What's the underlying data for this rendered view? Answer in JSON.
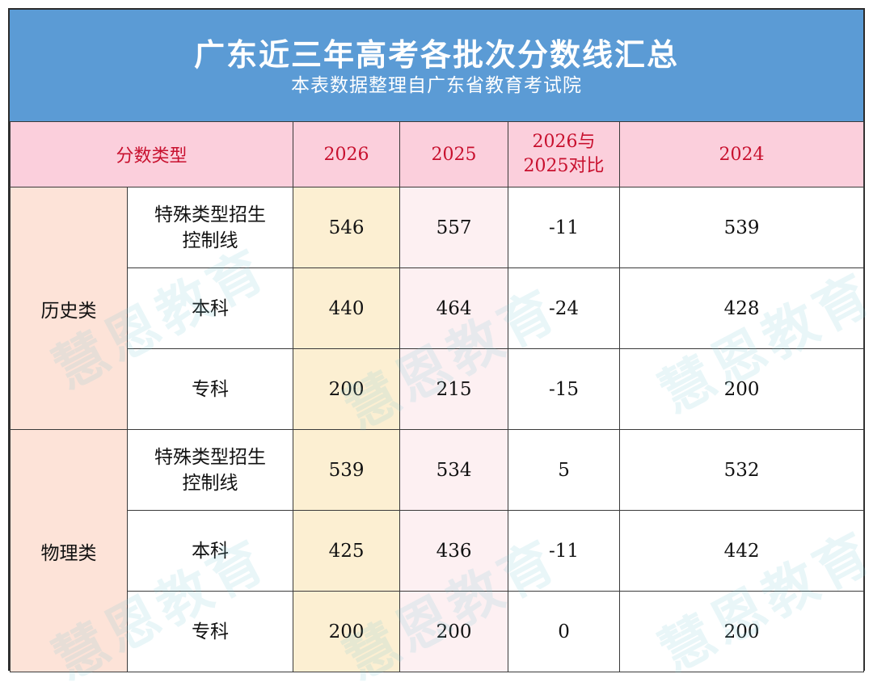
{
  "header": {
    "title": "广东近三年高考各批次分数线汇总",
    "subtitle": "本表数据整理自广东省教育考试院"
  },
  "columns": {
    "type": "分数类型",
    "y2026": "2026",
    "y2025": "2025",
    "compare_line1": "2026与",
    "compare_line2": "2025对比",
    "y2024": "2024"
  },
  "groups": [
    {
      "name": "历史类",
      "rows": [
        {
          "line1": "特殊类型招生",
          "line2": "控制线",
          "y2026": "546",
          "y2025": "557",
          "diff": "-11",
          "y2024": "539"
        },
        {
          "line1": "本科",
          "line2": "",
          "y2026": "440",
          "y2025": "464",
          "diff": "-24",
          "y2024": "428"
        },
        {
          "line1": "专科",
          "line2": "",
          "y2026": "200",
          "y2025": "215",
          "diff": "-15",
          "y2024": "200"
        }
      ]
    },
    {
      "name": "物理类",
      "rows": [
        {
          "line1": "特殊类型招生",
          "line2": "控制线",
          "y2026": "539",
          "y2025": "534",
          "diff": "5",
          "y2024": "532"
        },
        {
          "line1": "本科",
          "line2": "",
          "y2026": "425",
          "y2025": "436",
          "diff": "-11",
          "y2024": "442"
        },
        {
          "line1": "专科",
          "line2": "",
          "y2026": "200",
          "y2025": "200",
          "diff": "0",
          "y2024": "200"
        }
      ]
    }
  ],
  "watermark": {
    "text": "慧恩教育"
  },
  "colors": {
    "banner": "#5b9bd5",
    "header_row": "#fbcfdc",
    "group_cell": "#fde3d8",
    "col_2026": "#fcefd2",
    "col_2025": "#fdf0f2",
    "accent_text": "#c8102e"
  }
}
